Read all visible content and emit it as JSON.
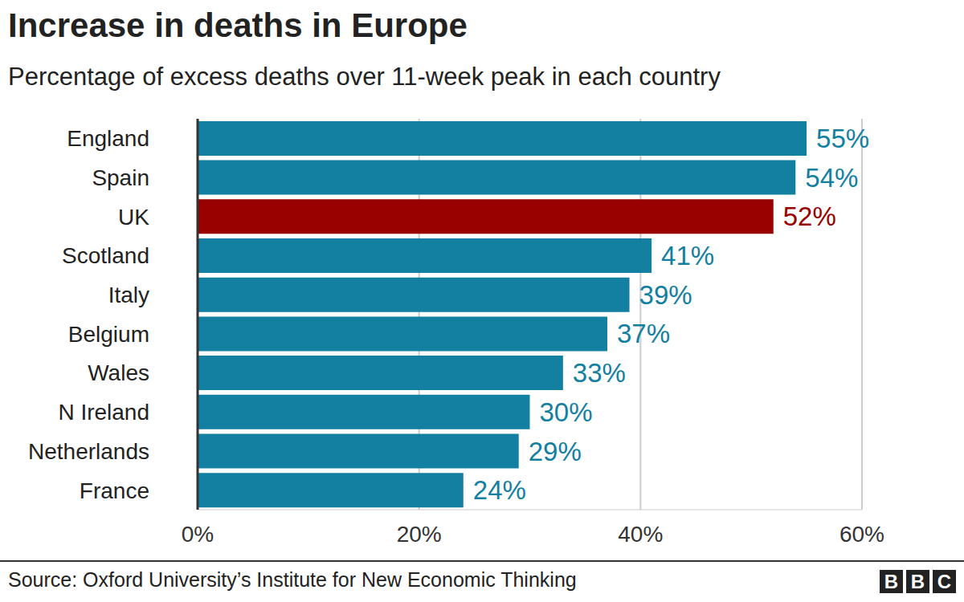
{
  "chart_data": {
    "type": "bar",
    "title": "Increase in deaths in Europe",
    "subtitle": "Percentage of excess deaths over 11-week peak in each country",
    "source": "Source: Oxford University’s Institute for New Economic Thinking",
    "logo": "BBC",
    "orientation": "horizontal",
    "categories": [
      "England",
      "Spain",
      "UK",
      "Scotland",
      "Italy",
      "Belgium",
      "Wales",
      "N Ireland",
      "Netherlands",
      "France"
    ],
    "values": [
      55,
      54,
      52,
      41,
      39,
      37,
      33,
      30,
      29,
      24
    ],
    "value_labels": [
      "55%",
      "54%",
      "52%",
      "41%",
      "39%",
      "37%",
      "33%",
      "30%",
      "29%",
      "24%"
    ],
    "colors": [
      "#1380a1",
      "#1380a1",
      "#990000",
      "#1380a1",
      "#1380a1",
      "#1380a1",
      "#1380a1",
      "#1380a1",
      "#1380a1",
      "#1380a1"
    ],
    "xlim": [
      0,
      60
    ],
    "xticks": [
      {
        "value": 0,
        "label": "0%"
      },
      {
        "value": 20,
        "label": "20%"
      },
      {
        "value": 40,
        "label": "40%"
      },
      {
        "value": 60,
        "label": "60%"
      }
    ],
    "grid": true,
    "data_labels": true
  }
}
